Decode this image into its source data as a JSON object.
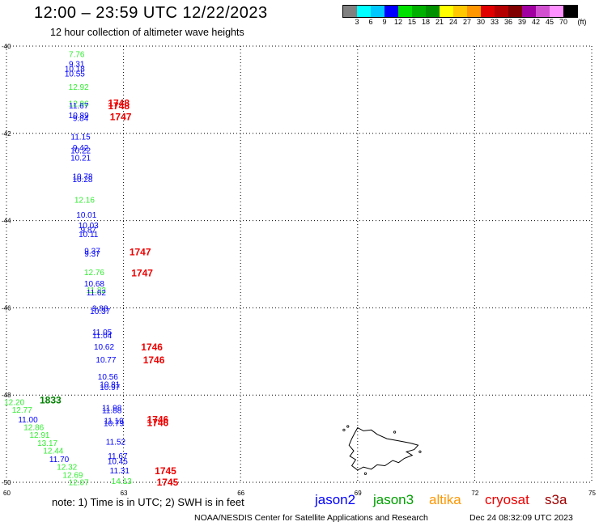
{
  "header": {
    "title": "12:00 – 23:59 UTC 12/22/2023",
    "subtitle": "12 hour collection of altimeter wave heights"
  },
  "color_scale": {
    "unit": "(ft)",
    "colors": [
      "#808080",
      "#00ffff",
      "#00c8ff",
      "#0000ff",
      "#00e000",
      "#00b000",
      "#009000",
      "#ffff00",
      "#ffc800",
      "#ff9600",
      "#e00000",
      "#b40000",
      "#800000",
      "#a000a0",
      "#d050d0",
      "#ff90ff",
      "#000000"
    ],
    "ticks": [
      "3",
      "6",
      "9",
      "12",
      "15",
      "18",
      "21",
      "24",
      "27",
      "30",
      "33",
      "36",
      "39",
      "42",
      "45",
      "70"
    ]
  },
  "map": {
    "lat_labels": [
      "-40",
      "-42",
      "-44",
      "-46",
      "-48",
      "-50"
    ],
    "lon_labels": [
      "60",
      "63",
      "66",
      "69",
      "72",
      "75"
    ],
    "lat_range": [
      -50,
      -40
    ],
    "lon_range": [
      60,
      75
    ],
    "grid": "dotted"
  },
  "measurements": [
    {
      "v": "7.76",
      "lat": -40.18,
      "lon": 61.8,
      "sat": "j3"
    },
    {
      "v": "9.31",
      "lat": -40.4,
      "lon": 61.8,
      "sat": "j2"
    },
    {
      "v": "10.18",
      "lat": -40.51,
      "lon": 61.75,
      "sat": "j2"
    },
    {
      "v": "10.55",
      "lat": -40.62,
      "lon": 61.75,
      "sat": "j2"
    },
    {
      "v": "12.92",
      "lat": -40.93,
      "lon": 61.85,
      "sat": "j3"
    },
    {
      "v": "12.96",
      "lat": -41.31,
      "lon": 61.85,
      "sat": "j3"
    },
    {
      "v": "11.67",
      "lat": -41.35,
      "lon": 61.85,
      "sat": "j2"
    },
    {
      "v": "10.89",
      "lat": -41.58,
      "lon": 61.85,
      "sat": "j2"
    },
    {
      "v": "9.84",
      "lat": -41.64,
      "lon": 61.9,
      "sat": "j2"
    },
    {
      "v": "11.15",
      "lat": -42.07,
      "lon": 61.9,
      "sat": "j2"
    },
    {
      "v": "9.42",
      "lat": -42.32,
      "lon": 61.9,
      "sat": "j2"
    },
    {
      "v": "10.22",
      "lat": -42.38,
      "lon": 61.9,
      "sat": "j2"
    },
    {
      "v": "10.21",
      "lat": -42.55,
      "lon": 61.9,
      "sat": "j2"
    },
    {
      "v": "10.78",
      "lat": -42.98,
      "lon": 61.95,
      "sat": "j2"
    },
    {
      "v": "10.28",
      "lat": -43.04,
      "lon": 61.95,
      "sat": "j2"
    },
    {
      "v": "12.16",
      "lat": -43.52,
      "lon": 62.0,
      "sat": "j3"
    },
    {
      "v": "10.01",
      "lat": -43.86,
      "lon": 62.05,
      "sat": "j2"
    },
    {
      "v": "10.03",
      "lat": -44.1,
      "lon": 62.1,
      "sat": "j2"
    },
    {
      "v": "9.87",
      "lat": -44.2,
      "lon": 62.1,
      "sat": "j2"
    },
    {
      "v": "10.11",
      "lat": -44.3,
      "lon": 62.1,
      "sat": "j2"
    },
    {
      "v": "9.37",
      "lat": -44.68,
      "lon": 62.2,
      "sat": "j2"
    },
    {
      "v": "9.37",
      "lat": -44.75,
      "lon": 62.2,
      "sat": "j2"
    },
    {
      "v": "12.76",
      "lat": -45.18,
      "lon": 62.25,
      "sat": "j3"
    },
    {
      "v": "10.68",
      "lat": -45.44,
      "lon": 62.25,
      "sat": "j2"
    },
    {
      "v": "11.82",
      "lat": -45.58,
      "lon": 62.3,
      "sat": "j3"
    },
    {
      "v": "11.62",
      "lat": -45.64,
      "lon": 62.3,
      "sat": "j2"
    },
    {
      "v": "9.88",
      "lat": -46.0,
      "lon": 62.4,
      "sat": "j2"
    },
    {
      "v": "10.37",
      "lat": -46.07,
      "lon": 62.4,
      "sat": "j2"
    },
    {
      "v": "11.05",
      "lat": -46.55,
      "lon": 62.45,
      "sat": "j2"
    },
    {
      "v": "11.04",
      "lat": -46.62,
      "lon": 62.45,
      "sat": "j2"
    },
    {
      "v": "10.62",
      "lat": -46.88,
      "lon": 62.5,
      "sat": "j2"
    },
    {
      "v": "10.77",
      "lat": -47.18,
      "lon": 62.55,
      "sat": "j2"
    },
    {
      "v": "10.56",
      "lat": -47.57,
      "lon": 62.6,
      "sat": "j2"
    },
    {
      "v": "10.81",
      "lat": -47.75,
      "lon": 62.65,
      "sat": "j2"
    },
    {
      "v": "10.97",
      "lat": -47.81,
      "lon": 62.65,
      "sat": "j2"
    },
    {
      "v": "11.98",
      "lat": -48.28,
      "lon": 62.7,
      "sat": "j2"
    },
    {
      "v": "11.88",
      "lat": -48.34,
      "lon": 62.7,
      "sat": "j2"
    },
    {
      "v": "11.19",
      "lat": -48.58,
      "lon": 62.75,
      "sat": "j2"
    },
    {
      "v": "10.79",
      "lat": -48.64,
      "lon": 62.75,
      "sat": "j2"
    },
    {
      "v": "11.52",
      "lat": -49.06,
      "lon": 62.8,
      "sat": "j2"
    },
    {
      "v": "11.67",
      "lat": -49.39,
      "lon": 62.85,
      "sat": "j2"
    },
    {
      "v": "10.45",
      "lat": -49.51,
      "lon": 62.85,
      "sat": "j2"
    },
    {
      "v": "11.31",
      "lat": -49.72,
      "lon": 62.9,
      "sat": "j2"
    },
    {
      "v": "14.13",
      "lat": -49.96,
      "lon": 62.95,
      "sat": "j3"
    },
    {
      "v": "12.20",
      "lat": -48.15,
      "lon": 60.2,
      "sat": "j3"
    },
    {
      "v": "12.77",
      "lat": -48.33,
      "lon": 60.4,
      "sat": "j3"
    },
    {
      "v": "11.00",
      "lat": -48.55,
      "lon": 60.55,
      "sat": "j2"
    },
    {
      "v": "12.86",
      "lat": -48.73,
      "lon": 60.7,
      "sat": "j3"
    },
    {
      "v": "12.91",
      "lat": -48.91,
      "lon": 60.85,
      "sat": "j3"
    },
    {
      "v": "13.17",
      "lat": -49.09,
      "lon": 61.05,
      "sat": "j3"
    },
    {
      "v": "12.44",
      "lat": -49.27,
      "lon": 61.2,
      "sat": "j3"
    },
    {
      "v": "11.70",
      "lat": -49.46,
      "lon": 61.35,
      "sat": "j2"
    },
    {
      "v": "12.32",
      "lat": -49.64,
      "lon": 61.55,
      "sat": "j3"
    },
    {
      "v": "12.69",
      "lat": -49.82,
      "lon": 61.7,
      "sat": "j3"
    },
    {
      "v": "12.07",
      "lat": -49.99,
      "lon": 61.85,
      "sat": "j3"
    }
  ],
  "times": [
    {
      "t": "1748",
      "lat": -41.31,
      "lon": 62.6,
      "sat": "cryo"
    },
    {
      "t": "1748",
      "lat": -41.37,
      "lon": 62.6,
      "sat": "cryo"
    },
    {
      "t": "1747",
      "lat": -41.62,
      "lon": 62.65,
      "sat": "cryo"
    },
    {
      "t": "1747",
      "lat": -44.72,
      "lon": 63.15,
      "sat": "cryo"
    },
    {
      "t": "1747",
      "lat": -45.2,
      "lon": 63.2,
      "sat": "cryo"
    },
    {
      "t": "1746",
      "lat": -46.9,
      "lon": 63.45,
      "sat": "cryo"
    },
    {
      "t": "1746",
      "lat": -47.2,
      "lon": 63.5,
      "sat": "cryo"
    },
    {
      "t": "1746",
      "lat": -48.56,
      "lon": 63.6,
      "sat": "cryo"
    },
    {
      "t": "1746",
      "lat": -48.64,
      "lon": 63.6,
      "sat": "cryo"
    },
    {
      "t": "1745",
      "lat": -49.74,
      "lon": 63.8,
      "sat": "cryo"
    },
    {
      "t": "1745",
      "lat": -50.0,
      "lon": 63.85,
      "sat": "cryo"
    },
    {
      "t": "1833",
      "lat": -48.12,
      "lon": 60.85,
      "sat": "j3"
    }
  ],
  "sat_colors": {
    "j2": "#0000ff",
    "j3": "#33ee33",
    "cryo": "#ee0000",
    "jason3_legend": "#00a000",
    "altika": "#ff9600",
    "s3a": "#a00000"
  },
  "time_colors": {
    "cryo": "#ee0000",
    "j3": "#008000"
  },
  "legend": {
    "note": "note:  1) Time is in UTC;  2) SWH is in feet",
    "jason2": "jason2",
    "jason3": "jason3",
    "altika": "altika",
    "cryosat": "cryosat",
    "s3a": "s3a"
  },
  "footer": {
    "credit": "NOAA/NESDIS Center for Satellite Applications and Research",
    "timestamp": "Dec 24 08:32:09 UTC 2023"
  }
}
